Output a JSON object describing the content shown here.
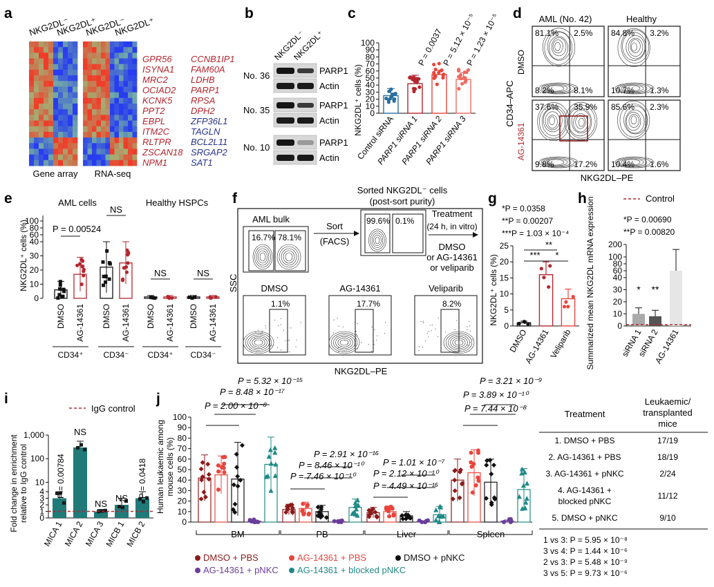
{
  "panels": {
    "a": "a",
    "b": "b",
    "c": "c",
    "d": "d",
    "e": "e",
    "f": "f",
    "g": "g",
    "h": "h",
    "i": "i",
    "j": "j"
  },
  "a": {
    "col_labels": [
      "NKG2DL⁻",
      "NKG2DL⁺",
      "NKG2DL⁻",
      "NKG2DL⁺"
    ],
    "bottom_labels": [
      "Gene array",
      "RNA-seq"
    ],
    "genes_left": [
      "GPR56",
      "ISYNA1",
      "MRC2",
      "OCIAD2",
      "KCNK5",
      "PPT2",
      "EBPL",
      "ITM2C",
      "RLTPR",
      "ZSCAN18",
      "NPM1"
    ],
    "genes_left_colors": [
      "#b3262e",
      "#b3262e",
      "#b3262e",
      "#b3262e",
      "#b3262e",
      "#b3262e",
      "#b3262e",
      "#b3262e",
      "#b3262e",
      "#b3262e",
      "#b3262e"
    ],
    "genes_right": [
      "CCNB1IP1",
      "FAM60A",
      "LDHB",
      "PARP1",
      "RPSA",
      "DPH2",
      "ZFP36L1",
      "TAGLN",
      "BCL2L11",
      "SRGAP2",
      "SAT1"
    ],
    "genes_right_colors": [
      "#b3262e",
      "#b3262e",
      "#b3262e",
      "#b3262e",
      "#b3262e",
      "#b3262e",
      "#28348a",
      "#28348a",
      "#28348a",
      "#28348a",
      "#28348a"
    ]
  },
  "b": {
    "col_labels": [
      "NKG2DL⁻",
      "NKG2DL⁺"
    ],
    "samples": [
      "No. 36",
      "No. 35",
      "No. 10"
    ],
    "bands": [
      "PARP1",
      "Actin"
    ]
  },
  "c": {
    "ylabel": "NKG2DL⁺ cells (%)",
    "chart_data": {
      "type": "bar",
      "categories": [
        "Control siRNA",
        "PARP1 siRNA 1",
        "PARP1 siRNA 2",
        "PARP1 siRNA 3"
      ],
      "values": [
        25,
        42,
        55,
        48
      ],
      "errors": [
        10,
        12,
        6,
        10
      ],
      "ylim": [
        0,
        100
      ],
      "yticks": [
        0,
        10,
        20,
        30,
        40,
        50,
        60,
        70,
        80,
        90,
        100
      ],
      "pvalues": [
        "P = 0.0037",
        "P = 5.12 × 10⁻⁵",
        "P = 1.23 × 10⁻⁵"
      ],
      "colors": [
        "#2b6e9e",
        "#b3262e",
        "#e8453c",
        "#ee6a5f"
      ]
    }
  },
  "d": {
    "col_titles": [
      "AML (No. 42)",
      "Healthy"
    ],
    "row_labels": [
      "DMSO",
      "AG-14361"
    ],
    "ylabel": "CD34–APC",
    "xlabel": "NKG2DL–PE",
    "quadrants": [
      [
        "81.1%",
        "2.5%",
        "8.2%",
        "8.1%"
      ],
      [
        "84.8%",
        "3.2%",
        "10.7%",
        "1.3%"
      ],
      [
        "37.6%",
        "35.9%",
        "9.8%",
        "17.2%"
      ],
      [
        "85.6%",
        "2.3%",
        "10.4%",
        "1.6%"
      ]
    ]
  },
  "e": {
    "ylabel": "NKG2DL⁺ cells (%)",
    "group_titles": [
      "AML cells",
      "Healthy HSPCs"
    ],
    "pvalue": "P = 0.00524",
    "ns": "NS",
    "chart_data": {
      "type": "bar",
      "categories": [
        "DMSO",
        "AG-14361",
        "DMSO",
        "AG-14361",
        "DMSO",
        "AG-14361",
        "DMSO",
        "AG-14361"
      ],
      "groups": [
        "CD34⁺",
        "CD34⁻",
        "CD34⁺",
        "CD34⁻"
      ],
      "values": [
        6,
        17,
        22,
        25,
        1,
        1,
        1,
        1
      ],
      "errors": [
        6,
        12,
        18,
        15,
        1,
        1,
        1,
        1
      ],
      "ylim": [
        0,
        100
      ],
      "yticks": [
        0,
        10,
        20,
        30,
        40,
        60,
        80,
        100
      ],
      "colors": [
        "#111111",
        "#b3262e",
        "#111111",
        "#b3262e",
        "#111111",
        "#b3262e",
        "#111111",
        "#b3262e"
      ]
    }
  },
  "f": {
    "top_labels": [
      "AML bulk",
      "Sorted NKG2DL⁻ cells",
      "(post-sort purity)"
    ],
    "sort_label": [
      "Sort",
      "(FACS)"
    ],
    "treatment_label": [
      "Treatment",
      "(24 h, in vitro)"
    ],
    "treatment_options": [
      "DMSO",
      "or AG-14361",
      "or veliparib"
    ],
    "bulk_pcts": [
      "16.7%",
      "78.1%"
    ],
    "sorted_pcts": [
      "99.6%",
      "0.1%"
    ],
    "bottom_titles": [
      "DMSO",
      "AG-14361",
      "Veliparib"
    ],
    "bottom_pcts": [
      "1.1%",
      "17.7%",
      "8.2%"
    ],
    "ylabel": "SSC",
    "xlabel": "NKG2DL–PE"
  },
  "g": {
    "ylabel": "NKG2DL⁺ cells (%)",
    "pvalues": [
      "*P = 0.0358",
      "**P = 0.00207",
      "***P = 1.03 × 10⁻⁴"
    ],
    "stars": [
      "***",
      "**",
      "*"
    ],
    "chart_data": {
      "type": "bar",
      "categories": [
        "DMSO",
        "AG-14361",
        "Veliparib"
      ],
      "values": [
        1,
        16,
        8.5
      ],
      "errors": [
        0.5,
        4,
        3
      ],
      "ylim": [
        0,
        25
      ],
      "yticks": [
        0,
        5,
        10,
        15,
        20,
        25
      ],
      "colors": [
        "#111111",
        "#b3262e",
        "#e8453c"
      ]
    }
  },
  "h": {
    "legend": "Control",
    "ylabel": "Summarized mean NKG2DL mRNA expression",
    "pvalues": [
      "*P = 0.00690",
      "**P = 0.00820"
    ],
    "stars": [
      "*",
      "**"
    ],
    "chart_data": {
      "type": "bar",
      "categories": [
        "siRNA 1",
        "siRNA 2",
        "AG-14361"
      ],
      "values": [
        10,
        8,
        60
      ],
      "errors": [
        5,
        5,
        100
      ],
      "control": 1,
      "ylim": [
        0,
        200
      ],
      "yticks": [
        0,
        10,
        20,
        30,
        40,
        60,
        80,
        100,
        200
      ],
      "colors": [
        "#aaaaaa",
        "#555555",
        "#e6e6e6"
      ]
    }
  },
  "i": {
    "legend": "IgG control",
    "ylabel": [
      "Fold change in enrichment",
      "relative to IgG control"
    ],
    "ns": "NS",
    "pvalues": [
      "P = 0.00784",
      "P = 0.0418"
    ],
    "chart_data": {
      "type": "bar",
      "categories": [
        "MICA 1",
        "MICA 2",
        "MICA 3",
        "MICB 1",
        "MICB 2"
      ],
      "values": [
        3,
        300,
        1,
        2,
        3
      ],
      "errors": [
        1,
        250,
        0.3,
        1,
        1
      ],
      "ylim": [
        0,
        1000
      ],
      "yticks": [
        0,
        1,
        2,
        3,
        4,
        10,
        100,
        1000
      ],
      "colors": [
        "#1f7a78",
        "#1f7a78",
        "#1f7a78",
        "#1f7a78",
        "#1f7a78"
      ]
    }
  },
  "j": {
    "ylabel": [
      "Human leukaemic among",
      "mouse cells (%)"
    ],
    "groups": [
      "BM",
      "PB",
      "Liver",
      "Spleen"
    ],
    "pvalues": [
      "P = 5.32 × 10⁻¹⁵",
      "P = 8.48 × 10⁻¹⁷",
      "P = 2.00 × 10⁻⁸",
      "P = 2.91 × 10⁻¹⁶",
      "P = 8.46 × 10⁻¹⁰",
      "P = 7.46 × 10⁻¹⁰",
      "P = 1.01 × 10⁻⁷",
      "P = 2.12 × 10⁻¹⁰",
      "P = 4.49 × 10⁻¹⁶",
      "P = 3.21 × 10⁻⁹",
      "P = 3.89 × 10⁻¹⁰",
      "P = 7.44 × 10⁻⁸"
    ],
    "legend": [
      {
        "label": "DMSO + PBS",
        "color": "#8b1a1a"
      },
      {
        "label": "AG-14361 + PBS",
        "color": "#e8453c"
      },
      {
        "label": "DMSO + pNKC",
        "color": "#111111"
      },
      {
        "label": "AG-14361 + pNKC",
        "color": "#6a3d9a"
      },
      {
        "label": "AG-14361 + blocked pNKC",
        "color": "#1f8a86"
      }
    ],
    "chart_data": {
      "type": "bar",
      "categories": [
        "BM",
        "PB",
        "Liver",
        "Spleen"
      ],
      "series": [
        {
          "name": "DMSO + PBS",
          "values": [
            42,
            12,
            9,
            40
          ]
        },
        {
          "name": "AG-14361 + PBS",
          "values": [
            45,
            13,
            10,
            47
          ]
        },
        {
          "name": "DMSO + pNKC",
          "values": [
            41,
            10,
            6,
            38
          ]
        },
        {
          "name": "AG-14361 + pNKC",
          "values": [
            1,
            0.5,
            0.5,
            1
          ]
        },
        {
          "name": "AG-14361 + blocked pNKC",
          "values": [
            55,
            14,
            7,
            31
          ]
        }
      ],
      "errors": [
        [
          22,
          5,
          5,
          20
        ],
        [
          18,
          6,
          5,
          22
        ],
        [
          35,
          6,
          4,
          22
        ],
        [
          1,
          0.5,
          0.5,
          1
        ],
        [
          26,
          8,
          8,
          20
        ]
      ],
      "ylim": [
        0,
        100
      ],
      "yticks": [
        0,
        10,
        20,
        30,
        40,
        50,
        60,
        70,
        80,
        90,
        100
      ]
    },
    "table": {
      "headers": [
        "Treatment",
        "Leukaemic/",
        "transplanted",
        "mice"
      ],
      "rows": [
        [
          "1. DMSO + PBS",
          "17/19"
        ],
        [
          "2. AG-14361 + PBS",
          "18/19"
        ],
        [
          "3. AG-14361 + pNKC",
          "2/24"
        ],
        [
          "4. AG-14361 +",
          "11/12"
        ],
        [
          "blocked pNKC",
          ""
        ],
        [
          "5. DMSO + pNKC",
          "9/10"
        ]
      ],
      "stats": [
        "1 vs 3: P = 5.95 × 10⁻⁸",
        "3 vs 4: P = 1.44 × 10⁻⁶",
        "2 vs 3: P = 5.48 × 10⁻⁹",
        "3 vs 5: P = 9.73 × 10⁻⁶"
      ]
    }
  }
}
